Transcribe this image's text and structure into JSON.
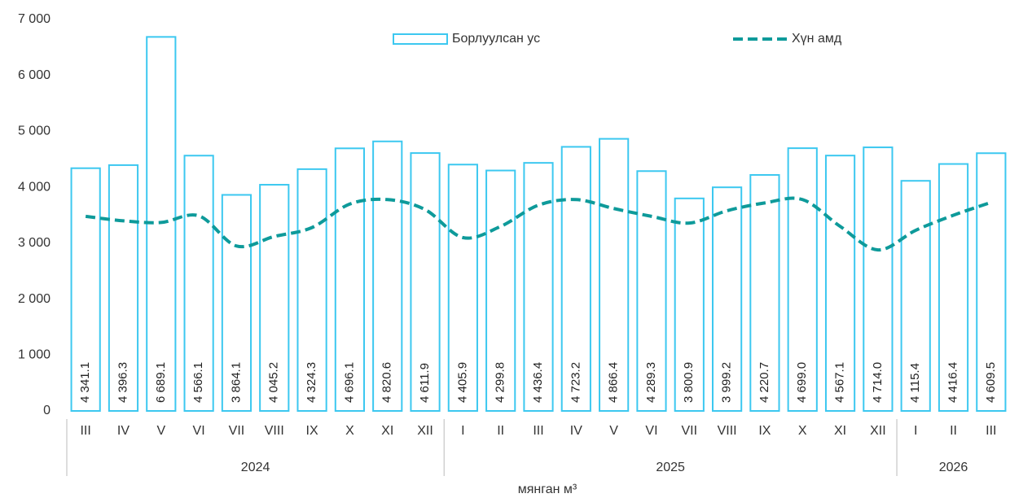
{
  "chart_data": {
    "type": "bar_line",
    "x_label": "мянган м³",
    "groups": [
      {
        "label": "2024",
        "categories": [
          "III",
          "IV",
          "V",
          "VI",
          "VII",
          "VIII",
          "IX",
          "X",
          "XI",
          "XII"
        ]
      },
      {
        "label": "2025",
        "categories": [
          "I",
          "II",
          "III",
          "IV",
          "V",
          "VI",
          "VII",
          "VIII",
          "IX",
          "X",
          "XI",
          "XII"
        ]
      },
      {
        "label": "2026",
        "categories": [
          "I",
          "II",
          "III"
        ]
      }
    ],
    "series": [
      {
        "name": "Борлуулсан ус",
        "type": "bar",
        "color": "#3cc8f0",
        "values": [
          4341.1,
          4396.3,
          6689.1,
          4566.1,
          3864.1,
          4045.2,
          4324.3,
          4696.1,
          4820.6,
          4611.9,
          4405.9,
          4299.8,
          4436.4,
          4723.2,
          4866.4,
          4289.3,
          3800.9,
          3999.2,
          4220.7,
          4699.0,
          4567.1,
          4714.0,
          4115.4,
          4416.4,
          4609.5
        ],
        "value_labels": [
          "4 341.1",
          "4 396.3",
          "6 689.1",
          "4 566.1",
          "3 864.1",
          "4 045.2",
          "4 324.3",
          "4 696.1",
          "4 820.6",
          "4 611.9",
          "4 405.9",
          "4 299.8",
          "4 436.4",
          "4 723.2",
          "4 866.4",
          "4 289.3",
          "3 800.9",
          "3 999.2",
          "4 220.7",
          "4 699.0",
          "4 567.1",
          "4 714.0",
          "4 115.4",
          "4 416.4",
          "4 609.5"
        ]
      },
      {
        "name": "Хүн амд",
        "type": "line",
        "color": "#0e9a9a",
        "values": [
          3480,
          3400,
          3370,
          3490,
          2950,
          3120,
          3280,
          3700,
          3780,
          3600,
          3100,
          3300,
          3680,
          3780,
          3620,
          3480,
          3360,
          3580,
          3720,
          3780,
          3300,
          2880,
          3230,
          3500,
          3730
        ]
      }
    ],
    "ylim": [
      0,
      7000
    ],
    "yticks": [
      0,
      {
        "value": 1000,
        "label": "1 000"
      },
      {
        "value": 2000,
        "label": "2 000"
      },
      {
        "value": 3000,
        "label": "3 000"
      },
      {
        "value": 4000,
        "label": "4 000"
      },
      {
        "value": 5000,
        "label": "5 000"
      },
      {
        "value": 6000,
        "label": "6 000"
      },
      {
        "value": 7000,
        "label": "7 000"
      }
    ],
    "grid": false
  }
}
